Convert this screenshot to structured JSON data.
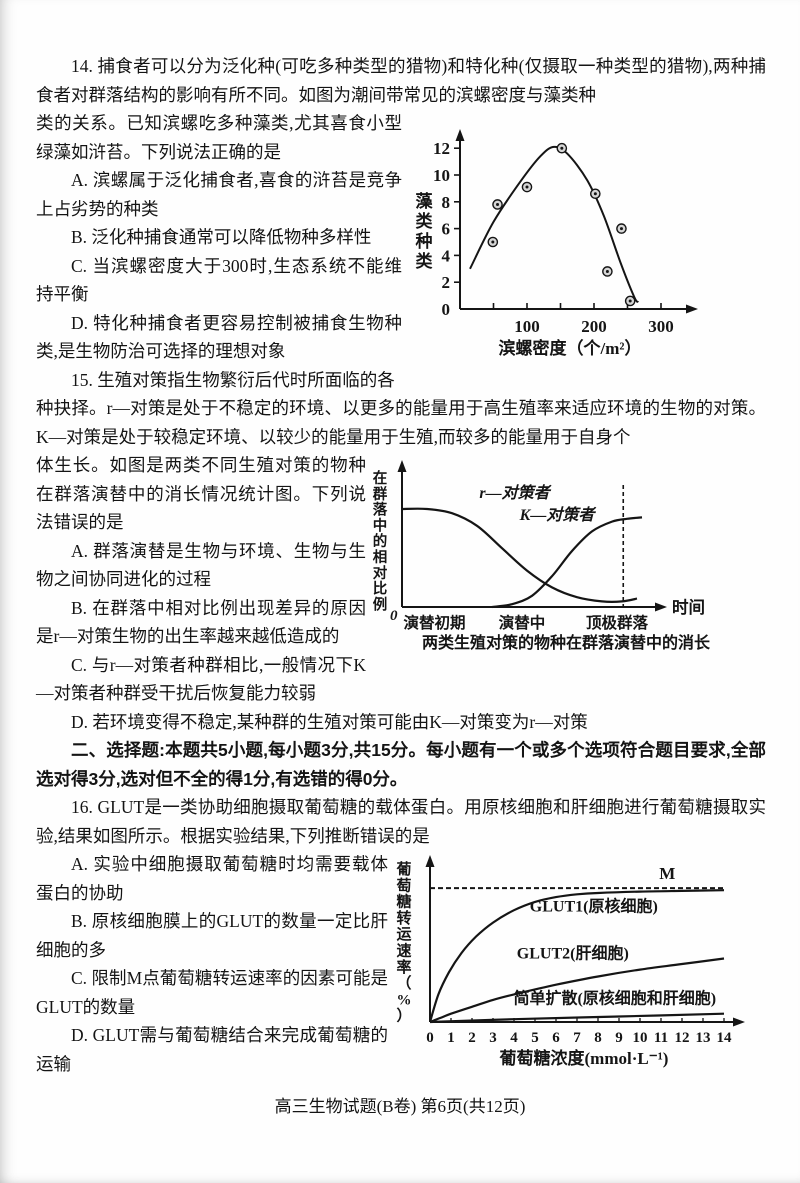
{
  "page": {
    "footer": "高三生物试题(B卷)  第6页(共12页)"
  },
  "section2_header": "二、选择题:本题共5小题,每小题3分,共15分。每小题有一个或多个选项符合题目要求,全部选对得3分,选对但不全的得1分,有选错的得0分。",
  "q14": {
    "stem_intro": "14. 捕食者可以分为泛化种(可吃多种类型的猎物)和特化种(仅摄取一种类型的猎物),两种捕食者对群落结构的影响有所不同。如图为潮间带常见的滨螺密度与藻类种",
    "stem_cont": "类的关系。已知滨螺吃多种藻类,尤其喜食小型绿藻如浒苔。下列说法正确的是",
    "options": [
      "A. 滨螺属于泛化捕食者,喜食的浒苔是竞争上占劣势的种类",
      "B. 泛化种捕食通常可以降低物种多样性",
      "C. 当滨螺密度大于300时,生态系统不能维持平衡",
      "D. 特化种捕食者更容易控制被捕食生物种类,是生物防治可选择的理想对象"
    ]
  },
  "q15": {
    "stem_line1": "15. 生殖对策指生物繁衍后代时所面临的各",
    "stem_cont1": "种抉择。r—对策是处于不稳定的环境、以更多的能量用于高生殖率来适应环境的生物的对策。K—对策是处于较稳定环境、以较少的能量用于生殖,而较多的能量用于自身个",
    "stem_cont2": "体生长。如图是两类不同生殖对策的物种在群落演替中的消长情况统计图。下列说法错误的是",
    "options": [
      "A. 群落演替是生物与环境、生物与生物之间协同进化的过程",
      "B. 在群落中相对比例出现差异的原因是r—对策生物的出生率越来越低造成的",
      "C. 与r—对策者种群相比,一般情况下K—对策者种群受干扰后恢复能力较弱",
      "D. 若环境变得不稳定,某种群的生殖对策可能由K—对策变为r—对策"
    ]
  },
  "q16": {
    "stem": "16. GLUT是一类协助细胞摄取葡萄糖的载体蛋白。用原核细胞和肝细胞进行葡萄糖摄取实验,结果如图所示。根据实验结果,下列推断错误的是",
    "options": [
      "A. 实验中细胞摄取葡萄糖时均需要载体蛋白的协助",
      "B. 原核细胞膜上的GLUT的数量一定比肝细胞的多",
      "C. 限制M点葡萄糖转运速率的因素可能是GLUT的数量",
      "D. GLUT需与葡萄糖结合来完成葡萄糖的运输"
    ]
  },
  "chart_data": [
    {
      "id": "periwinkle-algae",
      "type": "scatter",
      "xlabel": "滨螺密度（个/m²）",
      "ylabel": "藻类种类",
      "xlim": [
        0,
        345
      ],
      "ylim": [
        0,
        13.5
      ],
      "x_ticks": [
        50,
        100,
        150,
        200,
        250,
        300
      ],
      "x_labeled_ticks": [
        100,
        200,
        300
      ],
      "y_ticks": [
        0,
        2,
        4,
        6,
        8,
        10,
        12
      ],
      "points": [
        [
          49,
          5
        ],
        [
          56,
          7.8
        ],
        [
          100,
          9.1
        ],
        [
          152,
          12
        ],
        [
          202,
          8.6
        ],
        [
          220,
          2.8
        ],
        [
          241,
          6
        ],
        [
          254,
          0.6
        ]
      ],
      "trend_curve": [
        [
          15,
          3
        ],
        [
          50,
          6.5
        ],
        [
          90,
          9.5
        ],
        [
          120,
          11.4
        ],
        [
          140,
          12.1
        ],
        [
          160,
          11.6
        ],
        [
          190,
          9.6
        ],
        [
          215,
          6.9
        ],
        [
          240,
          3.4
        ],
        [
          260,
          0.9
        ],
        [
          266,
          0.5
        ]
      ]
    },
    {
      "id": "succession",
      "type": "line",
      "ylabel": "在群落中的相对比例",
      "x_axis_label": "时间",
      "origin_label": "0",
      "stage_labels": [
        {
          "text": "演替初期",
          "x": 0.13
        },
        {
          "text": "演替中",
          "x": 0.48
        },
        {
          "text": "顶极群落",
          "x": 0.86
        }
      ],
      "dashed_x": 0.885,
      "caption": "两类生殖对策的物种在群落演替中的消长",
      "series": [
        {
          "name": "r—对策者",
          "label_pos": [
            0.45,
            0.78
          ],
          "points": [
            [
              0,
              0.7
            ],
            [
              0.1,
              0.7
            ],
            [
              0.2,
              0.67
            ],
            [
              0.3,
              0.58
            ],
            [
              0.4,
              0.42
            ],
            [
              0.5,
              0.26
            ],
            [
              0.6,
              0.14
            ],
            [
              0.7,
              0.07
            ],
            [
              0.8,
              0.04
            ],
            [
              0.88,
              0.04
            ],
            [
              0.94,
              0.06
            ]
          ]
        },
        {
          "name": "K—对策者",
          "label_pos": [
            0.62,
            0.62
          ],
          "points": [
            [
              0.36,
              0.0
            ],
            [
              0.44,
              0.02
            ],
            [
              0.52,
              0.08
            ],
            [
              0.6,
              0.22
            ],
            [
              0.68,
              0.4
            ],
            [
              0.76,
              0.54
            ],
            [
              0.84,
              0.61
            ],
            [
              0.9,
              0.63
            ],
            [
              0.96,
              0.64
            ]
          ]
        }
      ]
    },
    {
      "id": "glut-transport",
      "type": "line",
      "ylabel": "葡萄糖转运速率（%）",
      "xlabel": "葡萄糖浓度(mmol·L⁻¹)",
      "x_ticks": [
        0,
        1,
        2,
        3,
        4,
        5,
        6,
        7,
        8,
        9,
        10,
        11,
        12,
        13,
        14
      ],
      "max_line": {
        "label": "M",
        "level": 0.97,
        "label_x": 11.3
      },
      "series": [
        {
          "name": "GLUT1(原核细胞)",
          "label_pos": [
            7.8,
            0.8
          ],
          "points": [
            [
              0,
              0
            ],
            [
              0.4,
              0.2
            ],
            [
              0.9,
              0.36
            ],
            [
              1.5,
              0.5
            ],
            [
              2.2,
              0.62
            ],
            [
              3,
              0.72
            ],
            [
              4,
              0.81
            ],
            [
              5,
              0.87
            ],
            [
              6,
              0.905
            ],
            [
              7,
              0.925
            ],
            [
              8,
              0.935
            ],
            [
              10,
              0.945
            ],
            [
              12,
              0.95
            ],
            [
              14,
              0.955
            ]
          ]
        },
        {
          "name": "GLUT2(肝细胞)",
          "label_pos": [
            6.8,
            0.46
          ],
          "points": [
            [
              0,
              0
            ],
            [
              0.5,
              0.03
            ],
            [
              1,
              0.06
            ],
            [
              2,
              0.11
            ],
            [
              3,
              0.16
            ],
            [
              4,
              0.2
            ],
            [
              6,
              0.27
            ],
            [
              8,
              0.33
            ],
            [
              10,
              0.38
            ],
            [
              12,
              0.42
            ],
            [
              14,
              0.46
            ]
          ]
        },
        {
          "name": "简单扩散(原核细胞和肝细胞)",
          "label_pos": [
            8.8,
            0.135
          ],
          "points": [
            [
              0,
              0
            ],
            [
              4,
              0.02
            ],
            [
              9,
              0.04
            ],
            [
              14,
              0.06
            ]
          ]
        }
      ]
    }
  ]
}
